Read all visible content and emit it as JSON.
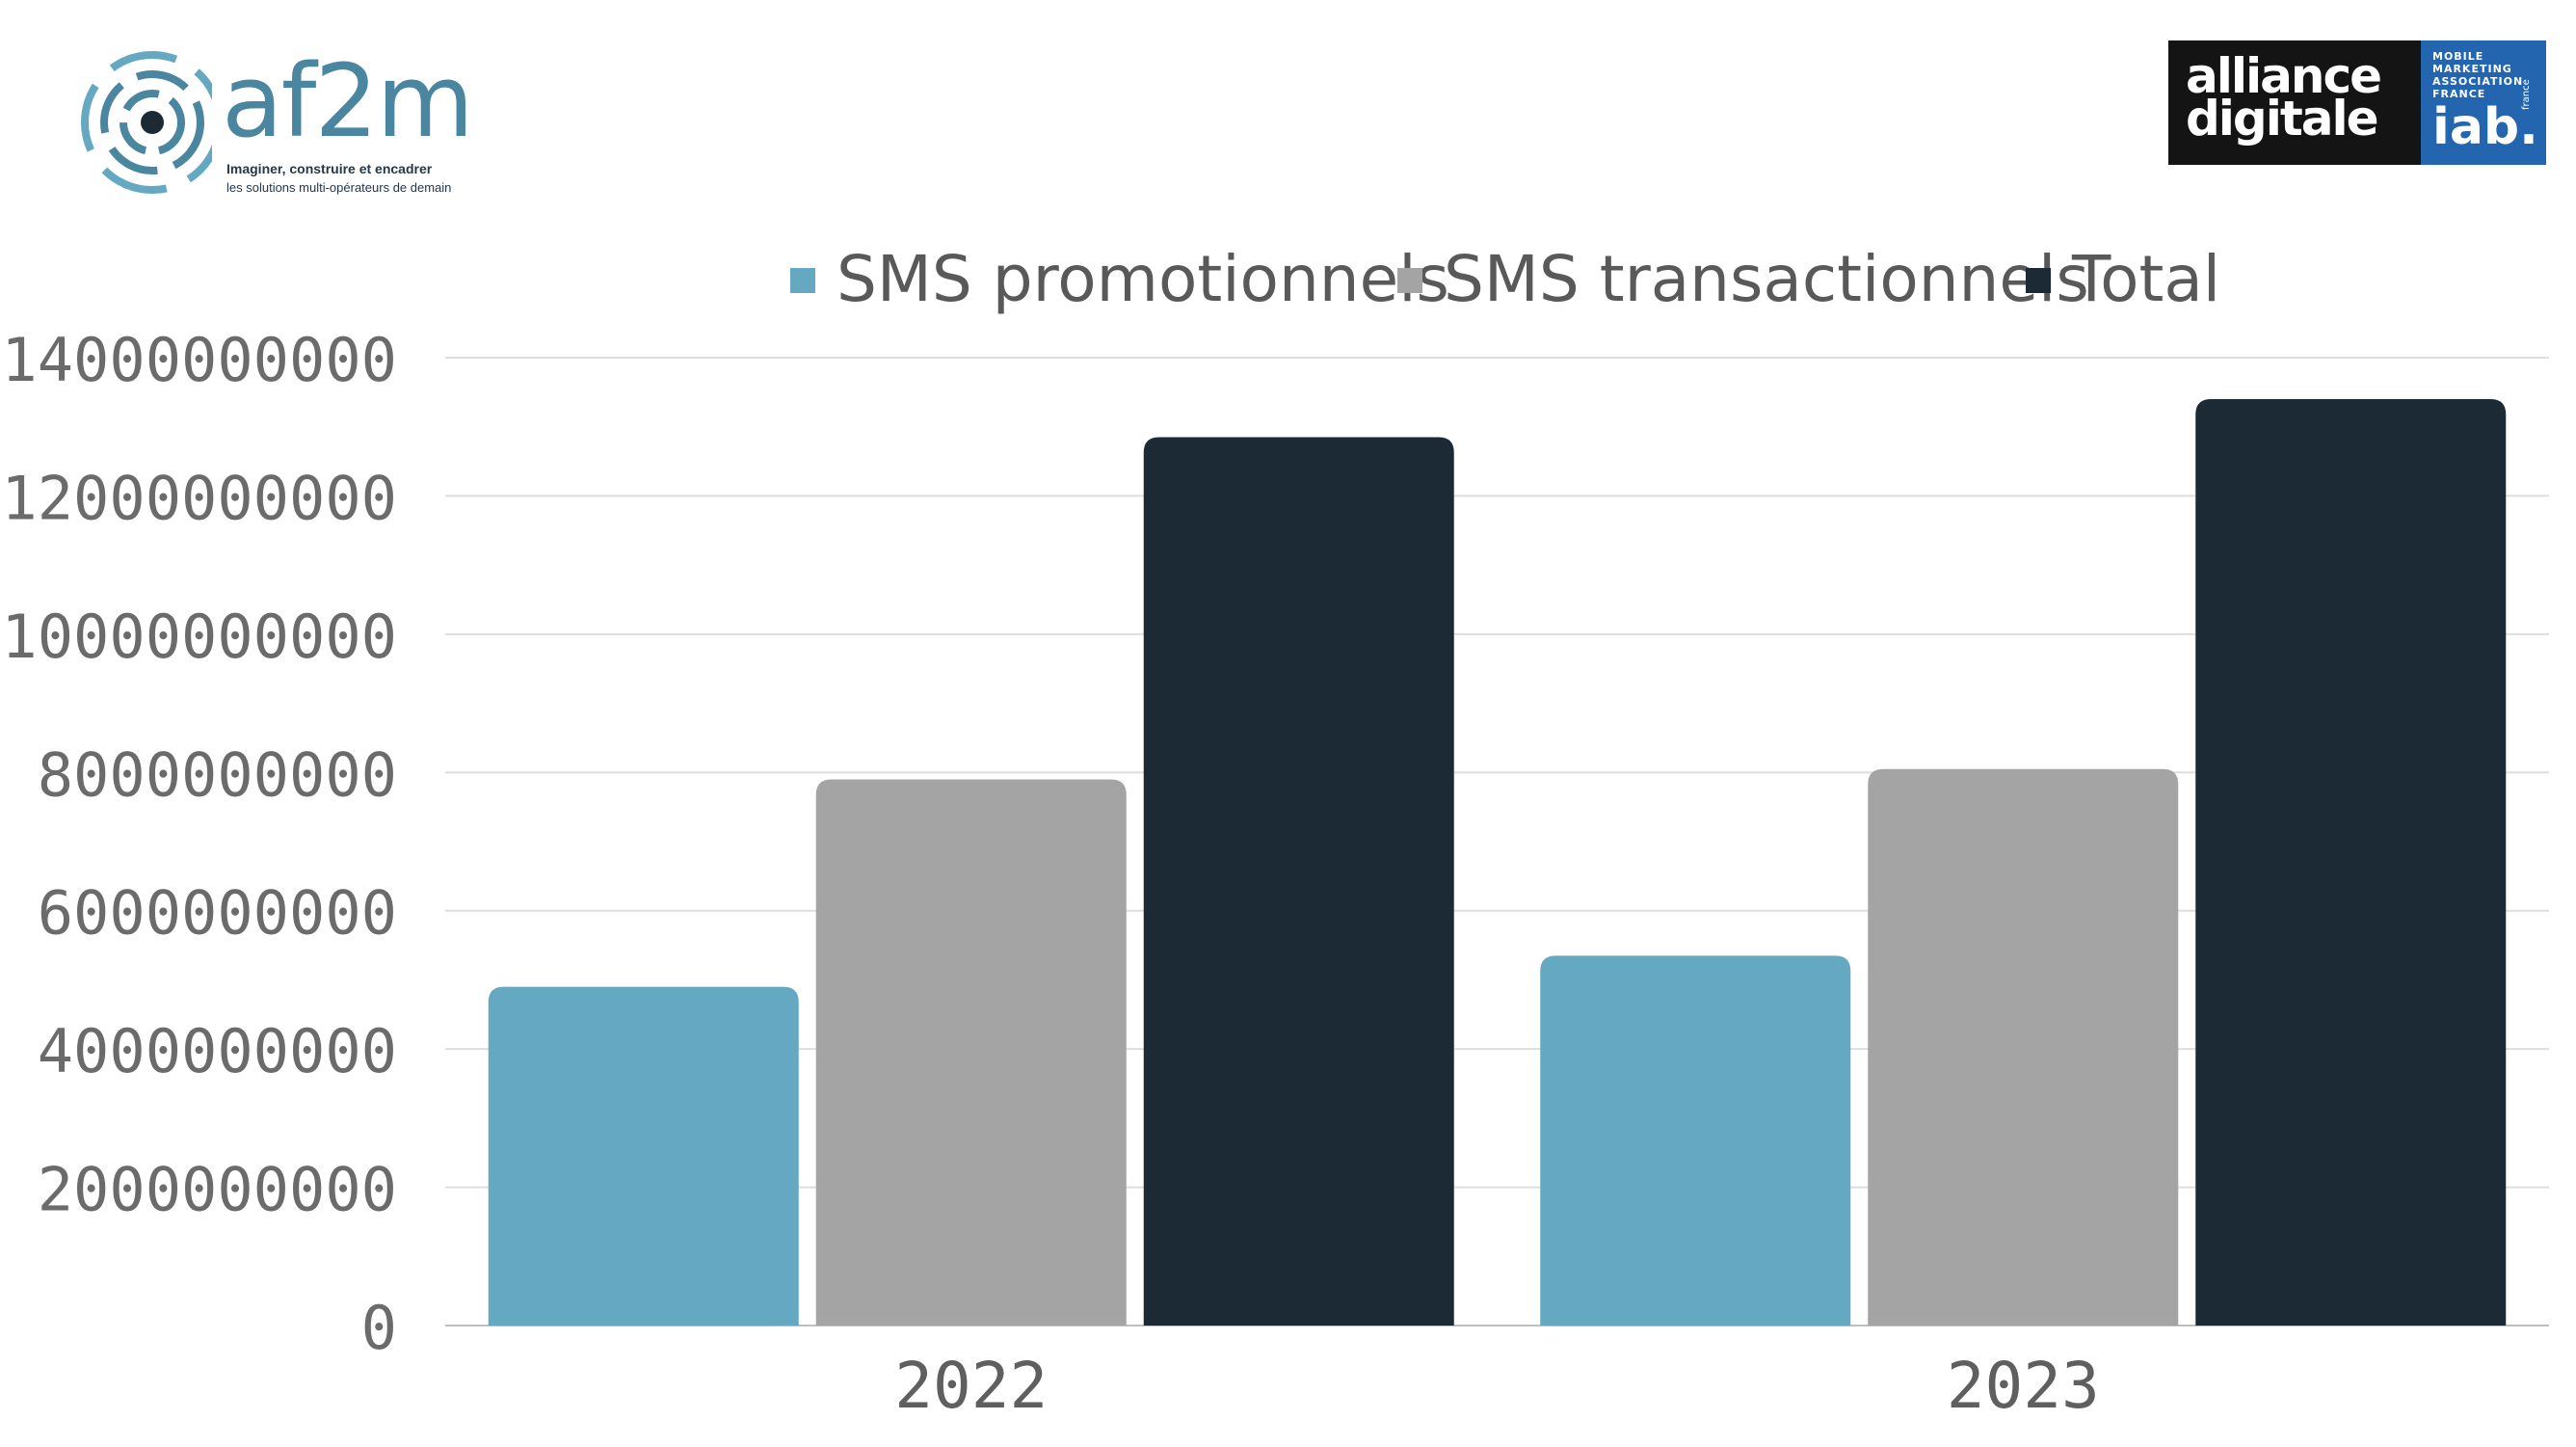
{
  "logos": {
    "af2m": {
      "wordmark": "af2m",
      "tagline_1": "Imaginer, construire et encadrer",
      "tagline_2": "les solutions multi-opérateurs de demain",
      "color": "#4a86a0"
    },
    "alliance": {
      "word_1": "alliance",
      "word_2": "digitale",
      "mma_line_1": "MOBILE",
      "mma_line_2": "MARKETING",
      "mma_line_3": "ASSOCIATION",
      "mma_line_4": "FRANCE",
      "iab": "iab.",
      "iab_sub": "france"
    }
  },
  "chart_data": {
    "type": "bar",
    "categories": [
      "2022",
      "2023"
    ],
    "series": [
      {
        "name": "SMS promotionnels",
        "values": [
          4900000000,
          5350000000
        ],
        "color": "#64a8c1"
      },
      {
        "name": "SMS transactionnels",
        "values": [
          7900000000,
          8050000000
        ],
        "color": "#a5a4a5"
      },
      {
        "name": "Total",
        "values": [
          12850000000,
          13400000000
        ],
        "color": "#1b2a34"
      }
    ],
    "yticks": [
      0,
      2000000000,
      4000000000,
      6000000000,
      8000000000,
      10000000000,
      12000000000,
      14000000000
    ],
    "ylim": [
      0,
      14000000000
    ],
    "grid": true,
    "legend_position": "top"
  }
}
